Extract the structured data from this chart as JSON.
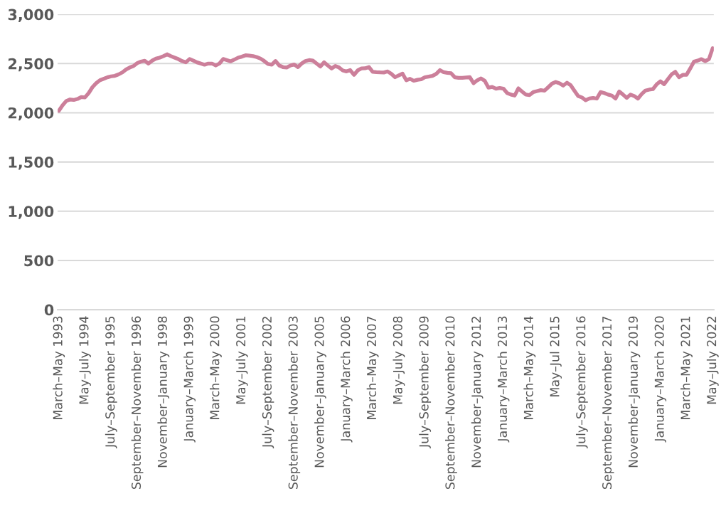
{
  "chart_data": {
    "type": "line",
    "categories": [
      "March–May 1993",
      null,
      null,
      null,
      null,
      null,
      null,
      "May–July 1994",
      null,
      null,
      null,
      null,
      null,
      null,
      "July–September 1995",
      null,
      null,
      null,
      null,
      null,
      null,
      "September–November 1996",
      null,
      null,
      null,
      null,
      null,
      null,
      "November–January 1998",
      null,
      null,
      null,
      null,
      null,
      null,
      "January–March 1999",
      null,
      null,
      null,
      null,
      null,
      null,
      "March–May 2000",
      null,
      null,
      null,
      null,
      null,
      null,
      "May–July 2001",
      null,
      null,
      null,
      null,
      null,
      null,
      "July–September 2002",
      null,
      null,
      null,
      null,
      null,
      null,
      "September–November 2003",
      null,
      null,
      null,
      null,
      null,
      null,
      "November–January 2005",
      null,
      null,
      null,
      null,
      null,
      null,
      "January–March 2006",
      null,
      null,
      null,
      null,
      null,
      null,
      "March–May 2007",
      null,
      null,
      null,
      null,
      null,
      null,
      "May–July 2008",
      null,
      null,
      null,
      null,
      null,
      null,
      "July–September 2009",
      null,
      null,
      null,
      null,
      null,
      null,
      "September–November 2010",
      null,
      null,
      null,
      null,
      null,
      null,
      "November–January 2012",
      null,
      null,
      null,
      null,
      null,
      null,
      "January–March 2013",
      null,
      null,
      null,
      null,
      null,
      null,
      "March–May 2014",
      null,
      null,
      null,
      null,
      null,
      null,
      "May–Jul 2015",
      null,
      null,
      null,
      null,
      null,
      null,
      "July–September 2016",
      null,
      null,
      null,
      null,
      null,
      null,
      "September–November 2017",
      null,
      null,
      null,
      null,
      null,
      null,
      "November–January 2019",
      null,
      null,
      null,
      null,
      null,
      null,
      "January–March 2020",
      null,
      null,
      null,
      null,
      null,
      null,
      "March–May 2021",
      null,
      null,
      null,
      null,
      null,
      null,
      "May–July 2022"
    ],
    "series": [
      {
        "color": "#cc7f9a",
        "values": [
          2020,
          2075,
          2120,
          2135,
          2130,
          2140,
          2160,
          2156,
          2200,
          2260,
          2300,
          2330,
          2345,
          2360,
          2370,
          2375,
          2390,
          2410,
          2440,
          2460,
          2475,
          2505,
          2520,
          2528,
          2500,
          2530,
          2550,
          2560,
          2575,
          2594,
          2575,
          2560,
          2545,
          2525,
          2512,
          2546,
          2530,
          2512,
          2500,
          2488,
          2500,
          2500,
          2480,
          2500,
          2546,
          2535,
          2522,
          2540,
          2560,
          2570,
          2584,
          2580,
          2575,
          2565,
          2550,
          2525,
          2495,
          2488,
          2526,
          2480,
          2464,
          2460,
          2480,
          2490,
          2464,
          2500,
          2525,
          2535,
          2530,
          2500,
          2470,
          2512,
          2480,
          2450,
          2475,
          2460,
          2430,
          2420,
          2433,
          2385,
          2430,
          2450,
          2452,
          2464,
          2416,
          2412,
          2410,
          2409,
          2420,
          2395,
          2361,
          2380,
          2397,
          2330,
          2345,
          2325,
          2335,
          2340,
          2361,
          2368,
          2375,
          2395,
          2433,
          2412,
          2405,
          2401,
          2360,
          2355,
          2355,
          2358,
          2361,
          2300,
          2330,
          2349,
          2325,
          2255,
          2262,
          2245,
          2252,
          2245,
          2200,
          2185,
          2175,
          2248,
          2215,
          2185,
          2180,
          2210,
          2220,
          2230,
          2224,
          2260,
          2296,
          2313,
          2300,
          2276,
          2305,
          2280,
          2224,
          2170,
          2156,
          2127,
          2145,
          2151,
          2144,
          2210,
          2200,
          2185,
          2175,
          2144,
          2216,
          2185,
          2151,
          2185,
          2170,
          2144,
          2190,
          2225,
          2235,
          2240,
          2288,
          2320,
          2290,
          2340,
          2390,
          2416,
          2361,
          2385,
          2385,
          2450,
          2520,
          2530,
          2545,
          2525,
          2545,
          2655
        ]
      }
    ],
    "ylim": [
      0,
      3000
    ],
    "yticks": [
      0,
      500,
      {
        "value": 1000,
        "label": "1,000"
      },
      {
        "value": 1500,
        "label": "1,500"
      },
      {
        "value": 2000,
        "label": "2,000"
      },
      {
        "value": 2500,
        "label": "2,500"
      },
      {
        "value": 3000,
        "label": "3,000"
      }
    ],
    "grid": "y",
    "legend": false,
    "marker": "none",
    "line_style": "solid"
  }
}
